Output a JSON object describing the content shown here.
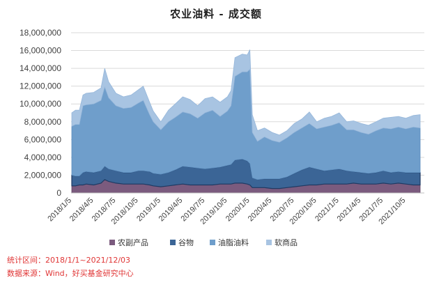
{
  "chart_data": {
    "type": "area",
    "stacked": true,
    "title": "农业油料 - 成交额",
    "xlabel": "",
    "ylabel": "",
    "ylim": [
      0,
      18000000
    ],
    "yticks": [
      "0",
      "2,000,000",
      "4,000,000",
      "6,000,000",
      "8,000,000",
      "10,000,000",
      "12,000,000",
      "14,000,000",
      "16,000,000",
      "18,000,000"
    ],
    "xticks": [
      "2018/1/5",
      "2018/4/5",
      "2018/7/5",
      "2018/10/5",
      "2019/1/5",
      "2019/4/5",
      "2019/7/5",
      "2019/10/5",
      "2020/1/5",
      "2020/4/5",
      "2020/7/5",
      "2020/10/5",
      "2021/1/5",
      "2021/4/5",
      "2021/7/5",
      "2021/10/5"
    ],
    "grid": true,
    "legend_position": "bottom",
    "x": [
      "2018/1/5",
      "2018/1/20",
      "2018/2/5",
      "2018/2/20",
      "2018/3/5",
      "2018/4/5",
      "2018/5/5",
      "2018/5/20",
      "2018/6/5",
      "2018/7/5",
      "2018/8/5",
      "2018/9/5",
      "2018/10/5",
      "2018/10/25",
      "2018/11/20",
      "2018/12/5",
      "2019/1/5",
      "2019/2/5",
      "2019/3/5",
      "2019/4/5",
      "2019/5/5",
      "2019/6/5",
      "2019/7/5",
      "2019/8/5",
      "2019/9/5",
      "2019/10/5",
      "2019/10/20",
      "2019/11/5",
      "2019/12/5",
      "2019/12/25",
      "2020/1/5",
      "2020/1/15",
      "2020/2/5",
      "2020/3/5",
      "2020/4/5",
      "2020/5/5",
      "2020/6/5",
      "2020/7/5",
      "2020/8/5",
      "2020/9/5",
      "2020/10/5",
      "2020/11/5",
      "2020/12/5",
      "2021/1/5",
      "2021/2/5",
      "2021/3/5",
      "2021/4/5",
      "2021/5/5",
      "2021/6/5",
      "2021/7/5",
      "2021/8/5",
      "2021/9/5",
      "2021/10/5",
      "2021/11/5",
      "2021/12/3"
    ],
    "series": [
      {
        "name": "农副产品",
        "color": "#7b5b7e",
        "values": [
          800000,
          800000,
          900000,
          900000,
          1000000,
          900000,
          1100000,
          1500000,
          1300000,
          1100000,
          1000000,
          1000000,
          1000000,
          1000000,
          900000,
          800000,
          700000,
          800000,
          900000,
          1000000,
          900000,
          900000,
          900000,
          900000,
          1000000,
          1000000,
          1000000,
          1100000,
          1100000,
          1000000,
          900000,
          600000,
          600000,
          600000,
          500000,
          500000,
          600000,
          700000,
          800000,
          900000,
          900000,
          1000000,
          1000000,
          1000000,
          1000000,
          1100000,
          1000000,
          1000000,
          1000000,
          1100000,
          1000000,
          1100000,
          1000000,
          900000,
          900000
        ]
      },
      {
        "name": "谷物",
        "color": "#3b6596",
        "values": [
          1200000,
          1100000,
          1000000,
          1400000,
          1400000,
          1400000,
          1400000,
          1500000,
          1400000,
          1400000,
          1300000,
          1300000,
          1500000,
          1500000,
          1500000,
          1400000,
          1400000,
          1500000,
          1700000,
          2000000,
          2000000,
          1900000,
          1800000,
          1900000,
          1900000,
          2100000,
          2200000,
          2600000,
          2700000,
          2600000,
          2400000,
          1100000,
          900000,
          1000000,
          1100000,
          1100000,
          1200000,
          1500000,
          1800000,
          2000000,
          1800000,
          1500000,
          1600000,
          1700000,
          1500000,
          1300000,
          1300000,
          1200000,
          1300000,
          1400000,
          1300000,
          1300000,
          1300000,
          1400000,
          1400000
        ]
      },
      {
        "name": "油脂油料",
        "color": "#6f9ecb",
        "values": [
          5500000,
          5800000,
          5800000,
          7500000,
          7500000,
          7700000,
          7900000,
          8900000,
          8000000,
          7300000,
          7200000,
          7300000,
          7600000,
          7900000,
          6400000,
          5800000,
          5000000,
          5700000,
          5900000,
          6100000,
          6000000,
          5600000,
          6300000,
          6500000,
          5700000,
          6100000,
          6600000,
          9400000,
          9800000,
          10000000,
          10600000,
          5100000,
          4300000,
          4700000,
          4300000,
          4100000,
          4400000,
          4600000,
          4700000,
          4900000,
          4500000,
          4900000,
          5000000,
          5200000,
          4600000,
          4700000,
          4500000,
          4400000,
          4700000,
          4800000,
          4900000,
          5000000,
          4900000,
          5100000,
          5000000
        ]
      },
      {
        "name": "软商品",
        "color": "#a8c4e2",
        "values": [
          1500000,
          1600000,
          1600000,
          1200000,
          1300000,
          1300000,
          1400000,
          2100000,
          1800000,
          1400000,
          1300000,
          1400000,
          1500000,
          1600000,
          1400000,
          1200000,
          900000,
          1300000,
          1500000,
          1700000,
          1600000,
          1400000,
          1600000,
          1500000,
          1600000,
          1600000,
          1700000,
          2100000,
          2000000,
          1900000,
          2200000,
          2000000,
          1200000,
          1000000,
          900000,
          800000,
          800000,
          1000000,
          1000000,
          1300000,
          800000,
          1000000,
          1000000,
          1100000,
          900000,
          1000000,
          1000000,
          1000000,
          1000000,
          1100000,
          1300000,
          1200000,
          1200000,
          1300000,
          1500000
        ]
      }
    ]
  },
  "footnotes": {
    "period": "统计区间：2018/1/1~2021/12/03",
    "source": "数据来源：Wind，好买基金研究中心"
  }
}
